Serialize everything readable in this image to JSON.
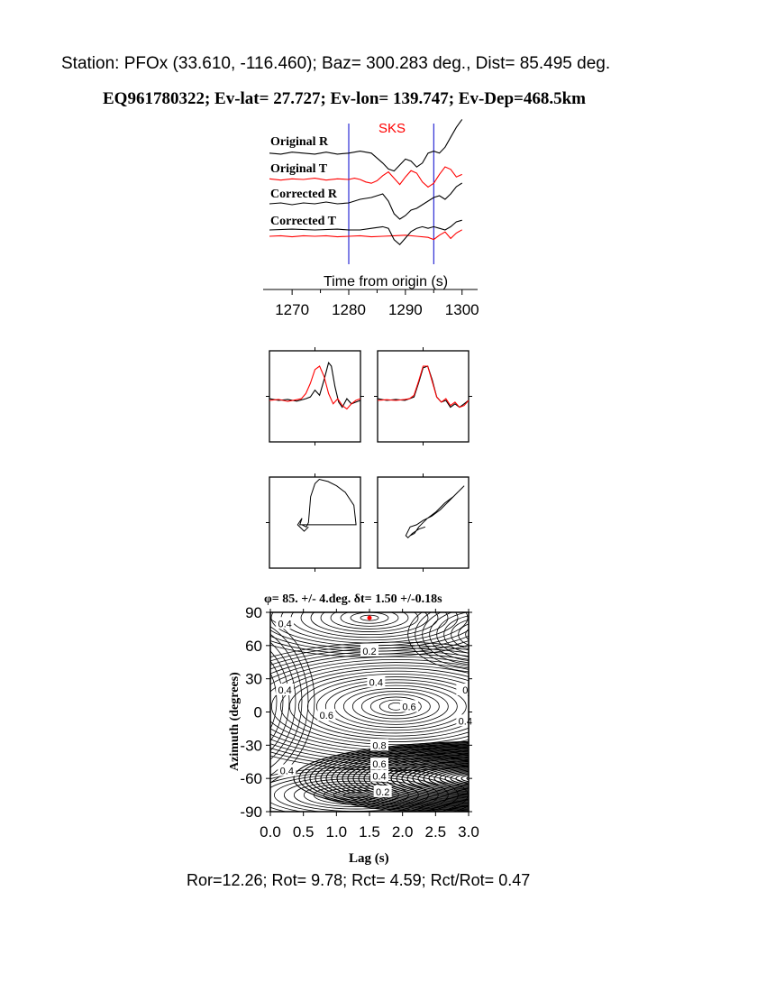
{
  "header": {
    "station_line": "Station: PFOx (33.610, -116.460); Baz=  300.283 deg., Dist=   85.495 deg.",
    "event_line": "EQ961780322; Ev-lat=  27.727; Ev-lon= 139.747; Ev-Dep=468.5km"
  },
  "footer": {
    "ratios": "Ror=12.26; Rot= 9.78; Rct= 4.59; Rct/Rot= 0.47"
  },
  "colors": {
    "black": "#000000",
    "red": "#ff0000",
    "blue": "#0000cc"
  },
  "chart_data": [
    {
      "type": "line",
      "name": "waveforms",
      "phase_label": "SKS",
      "xlabel": "Time from origin (s)",
      "xlim": [
        1266,
        1301
      ],
      "xticks": [
        1270,
        1280,
        1290,
        1300
      ],
      "window": [
        1280,
        1295
      ],
      "traces": [
        {
          "label": "Original R",
          "color": "#000000",
          "x": [
            1266,
            1268,
            1270,
            1272,
            1274,
            1276,
            1278,
            1280,
            1282,
            1284,
            1286,
            1287,
            1288,
            1289,
            1290,
            1291,
            1292,
            1293,
            1294,
            1295,
            1296,
            1297,
            1298,
            1299,
            1300
          ],
          "y": [
            0.1,
            0.05,
            0.15,
            0.1,
            0.05,
            0.15,
            0.05,
            0.1,
            0.2,
            0.1,
            -0.4,
            -0.7,
            -0.8,
            -0.5,
            -0.2,
            -0.3,
            -0.6,
            -0.4,
            0.1,
            0.2,
            0.1,
            0.4,
            0.9,
            1.4,
            1.8
          ]
        },
        {
          "label": "Original T",
          "color": "#ff0000",
          "x": [
            1266,
            1268,
            1270,
            1272,
            1274,
            1276,
            1278,
            1280,
            1281,
            1282,
            1283,
            1284,
            1285,
            1286,
            1287,
            1288,
            1289,
            1290,
            1291,
            1292,
            1293,
            1294,
            1295,
            1296,
            1297,
            1298,
            1299,
            1300
          ],
          "y": [
            0.05,
            -0.05,
            0.05,
            0,
            0.1,
            -0.05,
            0.05,
            0,
            0.1,
            0,
            -0.2,
            -0.3,
            -0.1,
            0.3,
            0.6,
            0.1,
            -0.4,
            0.2,
            0.7,
            0.5,
            -0.2,
            -0.6,
            -0.3,
            0.4,
            1,
            0.8,
            0.2,
            0.4
          ]
        },
        {
          "label": "Corrected R",
          "color": "#000000",
          "x": [
            1266,
            1268,
            1270,
            1272,
            1274,
            1276,
            1278,
            1280,
            1282,
            1284,
            1285,
            1286,
            1287,
            1288,
            1289,
            1290,
            1291,
            1292,
            1293,
            1294,
            1295,
            1296,
            1297,
            1298,
            1299,
            1300
          ],
          "y": [
            0.05,
            0.1,
            0,
            0.1,
            0.05,
            0.15,
            0.05,
            0.1,
            0.3,
            0.4,
            0.5,
            0.6,
            0.2,
            -0.5,
            -0.8,
            -0.6,
            -0.3,
            -0.2,
            0,
            0.2,
            0.4,
            0.5,
            0.3,
            0.6,
            1,
            1.2
          ]
        },
        {
          "label": "Corrected T",
          "color": "#ff0000",
          "x": [
            1266,
            1268,
            1270,
            1272,
            1274,
            1276,
            1278,
            1280,
            1282,
            1284,
            1286,
            1288,
            1290,
            1292,
            1294,
            1295,
            1296,
            1297,
            1298,
            1299,
            1300
          ],
          "y": [
            0,
            0.05,
            -0.05,
            0.05,
            0,
            0.05,
            -0.05,
            0,
            0.05,
            -0.05,
            0,
            0.05,
            0.1,
            0,
            -0.1,
            -0.3,
            0.1,
            0.4,
            -0.2,
            0.3,
            0.6
          ]
        },
        {
          "color": "#000000",
          "x": [
            1266,
            1270,
            1274,
            1278,
            1280,
            1282,
            1284,
            1286,
            1287,
            1288,
            1289,
            1290,
            1291,
            1292,
            1293,
            1294,
            1295,
            1296,
            1297,
            1298,
            1299,
            1300
          ],
          "y": [
            0,
            0.05,
            0,
            0.05,
            0,
            0,
            0.1,
            0.2,
            0.1,
            -0.6,
            -0.9,
            -0.5,
            -0.1,
            0.1,
            0.2,
            0.1,
            0.2,
            0.1,
            0,
            0.2,
            0.5,
            0.6
          ]
        }
      ]
    },
    {
      "type": "line",
      "name": "waveform-comparison",
      "panels": [
        {
          "series": [
            {
              "color": "#000000",
              "x": [
                0,
                0.1,
                0.2,
                0.3,
                0.4,
                0.45,
                0.5,
                0.55,
                0.6,
                0.65,
                0.68,
                0.72,
                0.76,
                0.8,
                0.85,
                0.9,
                0.95,
                1
              ],
              "y": [
                0.05,
                0,
                0.03,
                -0.02,
                0.05,
                0.1,
                0.3,
                0.15,
                0.6,
                1.1,
                1,
                0.4,
                -0.05,
                -0.2,
                0.05,
                -0.1,
                -0.05,
                0
              ]
            },
            {
              "color": "#ff0000",
              "x": [
                0,
                0.1,
                0.2,
                0.3,
                0.35,
                0.4,
                0.45,
                0.5,
                0.55,
                0.6,
                0.65,
                0.7,
                0.75,
                0.8,
                0.85,
                0.9,
                0.95,
                1
              ],
              "y": [
                0,
                0.03,
                -0.03,
                0.02,
                0.05,
                0.2,
                0.5,
                0.9,
                1,
                0.7,
                0.2,
                -0.1,
                0.05,
                -0.15,
                -0.25,
                -0.1,
                0,
                0.05
              ]
            }
          ]
        },
        {
          "series": [
            {
              "color": "#000000",
              "x": [
                0,
                0.1,
                0.2,
                0.3,
                0.35,
                0.4,
                0.45,
                0.5,
                0.55,
                0.6,
                0.65,
                0.7,
                0.75,
                0.8,
                0.85,
                0.9,
                0.95,
                1
              ],
              "y": [
                0.05,
                0,
                0.03,
                0,
                0.05,
                0.1,
                0.5,
                0.95,
                1,
                0.6,
                0.1,
                -0.05,
                0,
                -0.2,
                -0.1,
                -0.2,
                -0.1,
                0
              ]
            },
            {
              "color": "#ff0000",
              "x": [
                0,
                0.1,
                0.2,
                0.3,
                0.35,
                0.4,
                0.45,
                0.5,
                0.55,
                0.6,
                0.65,
                0.7,
                0.75,
                0.8,
                0.85,
                0.9,
                0.95,
                1
              ],
              "y": [
                0,
                0.02,
                0,
                0.03,
                0.05,
                0.15,
                0.55,
                1,
                1,
                0.55,
                0.1,
                -0.05,
                0.05,
                -0.15,
                -0.05,
                -0.2,
                -0.15,
                0
              ]
            }
          ]
        }
      ]
    },
    {
      "type": "scatter",
      "name": "particle-motion",
      "panels": [
        {
          "x": [
            -0.3,
            -0.2,
            -0.15,
            -0.1,
            0.0,
            0.1,
            0.3,
            0.5,
            0.7,
            0.9,
            0.95,
            0.9,
            0.7,
            0.4,
            0.1,
            -0.1,
            -0.25,
            -0.35,
            -0.3,
            -0.4,
            -0.25,
            -0.15
          ],
          "y": [
            -0.05,
            -0.1,
            0.0,
            0.6,
            0.9,
            1.0,
            0.95,
            0.85,
            0.7,
            0.4,
            -0.05,
            -0.05,
            -0.05,
            -0.05,
            -0.05,
            -0.05,
            -0.05,
            -0.05,
            0.1,
            -0.05,
            -0.2,
            -0.1
          ]
        },
        {
          "x": [
            -0.3,
            -0.2,
            -0.1,
            0.1,
            0.3,
            0.5,
            0.7,
            0.9,
            0.95,
            0.8,
            0.6,
            0.4,
            0.2,
            0.0,
            -0.15,
            -0.3,
            -0.4,
            -0.35,
            -0.25,
            -0.1,
            0.05
          ],
          "y": [
            -0.3,
            -0.25,
            -0.1,
            0.1,
            0.25,
            0.45,
            0.6,
            0.8,
            0.85,
            0.7,
            0.5,
            0.3,
            0.15,
            0.05,
            -0.05,
            -0.1,
            -0.3,
            -0.35,
            -0.25,
            -0.15,
            -0.1
          ]
        }
      ]
    },
    {
      "type": "heatmap",
      "name": "energy-grid",
      "title": "φ= 85. +/- 4.deg. δt= 1.50 +/-0.18s",
      "xlabel": "Lag (s)",
      "ylabel": "Azimuth (degrees)",
      "xlim": [
        0,
        3
      ],
      "ylim": [
        -90,
        90
      ],
      "xticks": [
        "0.0",
        "0.5",
        "1.0",
        "1.5",
        "2.0",
        "2.5",
        "3.0"
      ],
      "yticks": [
        "90",
        "60",
        "30",
        "0",
        "-30",
        "-60",
        "-90"
      ],
      "best": {
        "x": 1.5,
        "y": 85
      },
      "contour_labels": [
        {
          "text": "0.4",
          "x": 0.22,
          "y": 80
        },
        {
          "text": "0.2",
          "x": 1.5,
          "y": 55
        },
        {
          "text": "0.4",
          "x": 1.6,
          "y": 27
        },
        {
          "text": "0.4",
          "x": 0.22,
          "y": 20
        },
        {
          "text": "0.6",
          "x": 2.1,
          "y": 5
        },
        {
          "text": "0.6",
          "x": 0.85,
          "y": -3
        },
        {
          "text": "0.8",
          "x": 1.65,
          "y": -30
        },
        {
          "text": "0.4",
          "x": 0.25,
          "y": -53
        },
        {
          "text": "0.6",
          "x": 1.65,
          "y": -47
        },
        {
          "text": "0.4",
          "x": 1.65,
          "y": -58
        },
        {
          "text": "0.2",
          "x": 1.7,
          "y": -72
        },
        {
          "text": "0",
          "x": 2.95,
          "y": 20
        },
        {
          "text": "0.4",
          "x": 2.95,
          "y": -8
        }
      ]
    }
  ]
}
